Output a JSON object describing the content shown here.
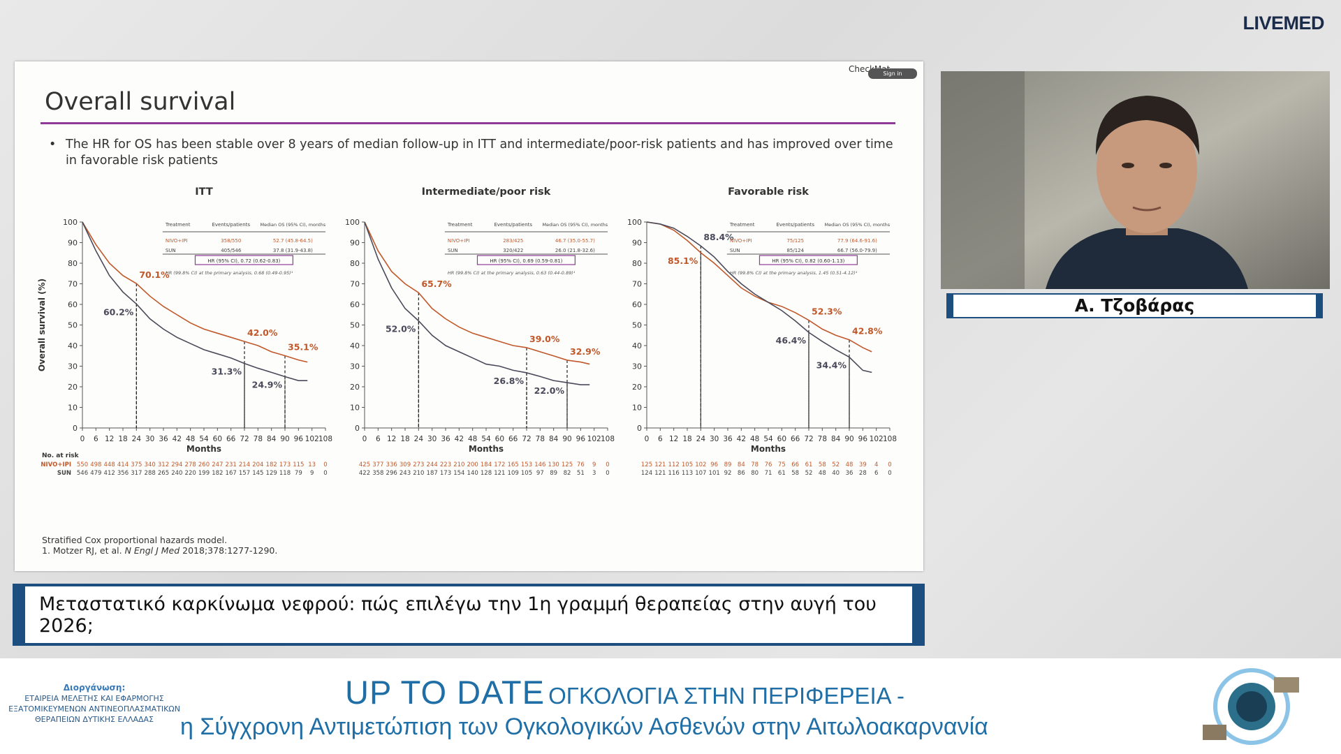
{
  "brand": "LIVEMED",
  "slide": {
    "title": "Overall survival",
    "corner": "CheckMat",
    "signin": "Sign in",
    "bullet": "The HR for OS has been stable over 8 years of median follow-up in ITT and intermediate/poor-risk patients and has improved over time in favorable risk patients",
    "footnotes": {
      "line1": "Stratified Cox proportional hazards model.",
      "ref_a": "1. Motzer RJ, et al. ",
      "ref_journal": "N Engl J Med",
      "ref_b": " 2018;378:1277-1290."
    }
  },
  "chart_data": [
    {
      "type": "line",
      "title": "ITT",
      "ylabel": "Overall survival (%)",
      "xlabel": "Months",
      "xlim": [
        0,
        108
      ],
      "xticks": [
        0,
        6,
        12,
        18,
        24,
        30,
        36,
        42,
        48,
        54,
        60,
        66,
        72,
        78,
        84,
        90,
        96,
        102,
        108
      ],
      "ylim": [
        0,
        100
      ],
      "yticks": [
        0,
        10,
        20,
        30,
        40,
        50,
        60,
        70,
        80,
        90,
        100
      ],
      "x": [
        0,
        6,
        12,
        18,
        24,
        30,
        36,
        42,
        48,
        54,
        60,
        66,
        72,
        78,
        84,
        90,
        96,
        100
      ],
      "series": [
        {
          "name": "NIVO+IPI",
          "color": "#c0582a",
          "values": [
            100,
            89,
            80,
            74,
            70.1,
            64,
            59,
            55,
            51,
            48,
            46,
            44,
            42,
            40,
            37,
            35.1,
            33,
            32
          ]
        },
        {
          "name": "SUN",
          "color": "#4a4a5a",
          "values": [
            100,
            86,
            74,
            66,
            60.2,
            53,
            48,
            44,
            41,
            38,
            36,
            34,
            31.3,
            29,
            27,
            24.9,
            23,
            23
          ]
        }
      ],
      "annotations": [
        {
          "series": 0,
          "x": 24,
          "y": 70.1,
          "label": "70.1%"
        },
        {
          "series": 1,
          "x": 24,
          "y": 60.2,
          "label": "60.2%"
        },
        {
          "series": 0,
          "x": 72,
          "y": 42,
          "label": "42.0%"
        },
        {
          "series": 1,
          "x": 72,
          "y": 31.3,
          "label": "31.3%"
        },
        {
          "series": 0,
          "x": 90,
          "y": 35.1,
          "label": "35.1%"
        },
        {
          "series": 1,
          "x": 90,
          "y": 24.9,
          "label": "24.9%"
        }
      ],
      "table": {
        "header": [
          "Treatment",
          "Events/patients",
          "Median OS (95% CI), months"
        ],
        "rows": [
          [
            "358/550",
            "52.7 (45.8-64.5)"
          ],
          [
            "405/546",
            "37.8 (31.9-43.8)"
          ]
        ],
        "hr": "HR (95% CI), 0.72 (0.62-0.83)",
        "note": "HR (99.8% CI) at the primary analysis, 0.68 (0.49-0.95)¹"
      },
      "at_risk": {
        "label": "No. at risk",
        "rows": [
          [
            550,
            498,
            448,
            414,
            375,
            340,
            312,
            294,
            278,
            260,
            247,
            231,
            214,
            204,
            182,
            173,
            115,
            13,
            0
          ],
          [
            546,
            479,
            412,
            356,
            317,
            288,
            265,
            240,
            220,
            199,
            182,
            167,
            157,
            145,
            129,
            118,
            79,
            9,
            0
          ]
        ]
      }
    },
    {
      "type": "line",
      "title": "Intermediate/poor risk",
      "xlabel": "Months",
      "xlim": [
        0,
        108
      ],
      "xticks": [
        0,
        6,
        12,
        18,
        24,
        30,
        36,
        42,
        48,
        54,
        60,
        66,
        72,
        78,
        84,
        90,
        96,
        102,
        108
      ],
      "ylim": [
        0,
        100
      ],
      "yticks": [
        0,
        10,
        20,
        30,
        40,
        50,
        60,
        70,
        80,
        90,
        100
      ],
      "x": [
        0,
        6,
        12,
        18,
        24,
        30,
        36,
        42,
        48,
        54,
        60,
        66,
        72,
        78,
        84,
        90,
        96,
        100
      ],
      "series": [
        {
          "name": "NIVO+IPI",
          "color": "#c0582a",
          "values": [
            100,
            86,
            76,
            70,
            65.7,
            58,
            53,
            49,
            46,
            44,
            42,
            40,
            39,
            37,
            35,
            32.9,
            32,
            31
          ]
        },
        {
          "name": "SUN",
          "color": "#4a4a5a",
          "values": [
            100,
            82,
            68,
            58,
            52,
            45,
            40,
            37,
            34,
            31,
            30,
            28,
            26.8,
            25,
            23,
            22,
            21,
            21
          ]
        }
      ],
      "annotations": [
        {
          "series": 0,
          "x": 24,
          "y": 65.7,
          "label": "65.7%"
        },
        {
          "series": 1,
          "x": 24,
          "y": 52,
          "label": "52.0%"
        },
        {
          "series": 0,
          "x": 72,
          "y": 39,
          "label": "39.0%"
        },
        {
          "series": 1,
          "x": 72,
          "y": 26.8,
          "label": "26.8%"
        },
        {
          "series": 0,
          "x": 90,
          "y": 32.9,
          "label": "32.9%"
        },
        {
          "series": 1,
          "x": 90,
          "y": 22,
          "label": "22.0%"
        }
      ],
      "table": {
        "header": [
          "Treatment",
          "Events/patients",
          "Median OS (95% CI), months"
        ],
        "rows": [
          [
            "283/425",
            "46.7 (35.0-55.7)"
          ],
          [
            "320/422",
            "26.0 (21.8-32.6)"
          ]
        ],
        "hr": "HR (95% CI), 0.69 (0.59-0.81)",
        "note": "HR (99.8% CI) at the primary analysis, 0.63 (0.44-0.89)¹"
      },
      "at_risk": {
        "rows": [
          [
            425,
            377,
            336,
            309,
            273,
            244,
            223,
            210,
            200,
            184,
            172,
            165,
            153,
            146,
            130,
            125,
            76,
            9,
            0
          ],
          [
            422,
            358,
            296,
            243,
            210,
            187,
            173,
            154,
            140,
            128,
            121,
            109,
            105,
            97,
            89,
            82,
            51,
            3,
            0
          ]
        ]
      }
    },
    {
      "type": "line",
      "title": "Favorable risk",
      "xlabel": "Months",
      "xlim": [
        0,
        108
      ],
      "xticks": [
        0,
        6,
        12,
        18,
        24,
        30,
        36,
        42,
        48,
        54,
        60,
        66,
        72,
        78,
        84,
        90,
        96,
        102,
        108
      ],
      "ylim": [
        0,
        100
      ],
      "yticks": [
        0,
        10,
        20,
        30,
        40,
        50,
        60,
        70,
        80,
        90,
        100
      ],
      "x": [
        0,
        6,
        12,
        18,
        24,
        30,
        36,
        42,
        48,
        54,
        60,
        66,
        72,
        78,
        84,
        90,
        96,
        100
      ],
      "series": [
        {
          "name": "NIVO+IPI",
          "color": "#c0582a",
          "values": [
            100,
            99,
            96,
            91,
            85.1,
            80,
            74,
            68,
            64,
            61,
            59,
            56,
            52.3,
            48,
            45,
            42.8,
            39,
            37
          ]
        },
        {
          "name": "SUN",
          "color": "#4a4a5a",
          "values": [
            100,
            99,
            97,
            93,
            88.4,
            83,
            76,
            70,
            65,
            61,
            57,
            52,
            46.4,
            42,
            38,
            34.4,
            28,
            27
          ]
        }
      ],
      "annotations": [
        {
          "series": 1,
          "x": 24,
          "y": 88.4,
          "label": "88.4%"
        },
        {
          "series": 0,
          "x": 24,
          "y": 85.1,
          "label": "85.1%"
        },
        {
          "series": 0,
          "x": 72,
          "y": 52.3,
          "label": "52.3%"
        },
        {
          "series": 1,
          "x": 72,
          "y": 46.4,
          "label": "46.4%"
        },
        {
          "series": 0,
          "x": 90,
          "y": 42.8,
          "label": "42.8%"
        },
        {
          "series": 1,
          "x": 90,
          "y": 34.4,
          "label": "34.4%"
        }
      ],
      "table": {
        "header": [
          "Treatment",
          "Events/patients",
          "Median OS (95% CI), months"
        ],
        "rows": [
          [
            "75/125",
            "77.9 (64.6-91.6)"
          ],
          [
            "85/124",
            "66.7 (56.0-79.9)"
          ]
        ],
        "hr": "HR (95% CI), 0.82 (0.60-1.13)",
        "note": "HR (99.8% CI) at the primary analysis, 1.45 (0.51-4.12)¹"
      },
      "at_risk": {
        "rows": [
          [
            125,
            121,
            112,
            105,
            102,
            96,
            89,
            84,
            78,
            76,
            75,
            66,
            61,
            58,
            52,
            48,
            39,
            4,
            0
          ],
          [
            124,
            121,
            116,
            113,
            107,
            101,
            92,
            86,
            80,
            71,
            61,
            58,
            52,
            48,
            40,
            36,
            28,
            6,
            0
          ]
        ]
      }
    }
  ],
  "caption": "Μεταστατικό καρκίνωμα νεφρού: πώς επιλέγω την 1η γραμμή θεραπείας στην αυγή του 2026;",
  "speaker": "Α. Τζοβάρας",
  "footer": {
    "organizer_label": "Διοργάνωση:",
    "organizer_lines": [
      "ΕΤΑΙΡΕΙΑ ΜΕΛΕΤΗΣ ΚΑΙ ΕΦΑΡΜΟΓΗΣ",
      "ΕΞΑΤΟΜΙΚΕΥΜΕΝΩΝ ΑΝΤΙΝΕΟΠΛΑΣΜΑΤΙΚΩΝ",
      "ΘΕΡΑΠΕΙΩΝ ΔΥΤΙΚΗΣ ΕΛΛΑΔΑΣ"
    ],
    "title_big": "UP TO DATE",
    "title_rest": "ΟΓΚΟΛΟΓΙΑ ΣΤΗΝ ΠΕΡΙΦΕΡΕΙΑ -",
    "subtitle": "η Σύγχρονη Αντιμετώπιση των Ογκολογικών Ασθενών στην Αιτωλοακαρνανία"
  }
}
